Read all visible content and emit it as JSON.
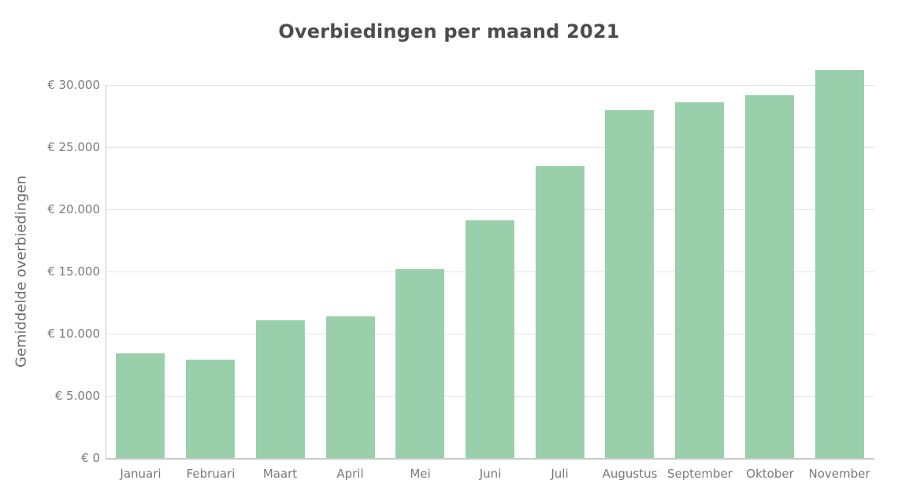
{
  "chart_data": {
    "type": "bar",
    "title": "Overbiedingen per maand 2021",
    "xlabel": "",
    "ylabel": "Gemiddelde overbiedingen",
    "categories": [
      "Januari",
      "Februari",
      "Maart",
      "April",
      "Mei",
      "Juni",
      "Juli",
      "Augustus",
      "September",
      "Oktober",
      "November"
    ],
    "values": [
      8400,
      7900,
      11100,
      11400,
      15200,
      19100,
      23500,
      28000,
      28600,
      29200,
      31200
    ],
    "ylim": [
      0,
      31600
    ],
    "ytick_step": 5000,
    "ytick_labels": [
      "€ 0",
      "€ 5.000",
      "€ 10.000",
      "€ 15.000",
      "€ 20.000",
      "€ 25.000",
      "€ 30.000"
    ],
    "currency": "€",
    "legend": "none",
    "grid": "horizontal",
    "bar_color": "#99d0ab",
    "grid_color": "#e3e3e3",
    "axis_color": "#c9c9c9",
    "tick_label_color": "#7a7a7a",
    "title_color": "#4c4c4c"
  }
}
